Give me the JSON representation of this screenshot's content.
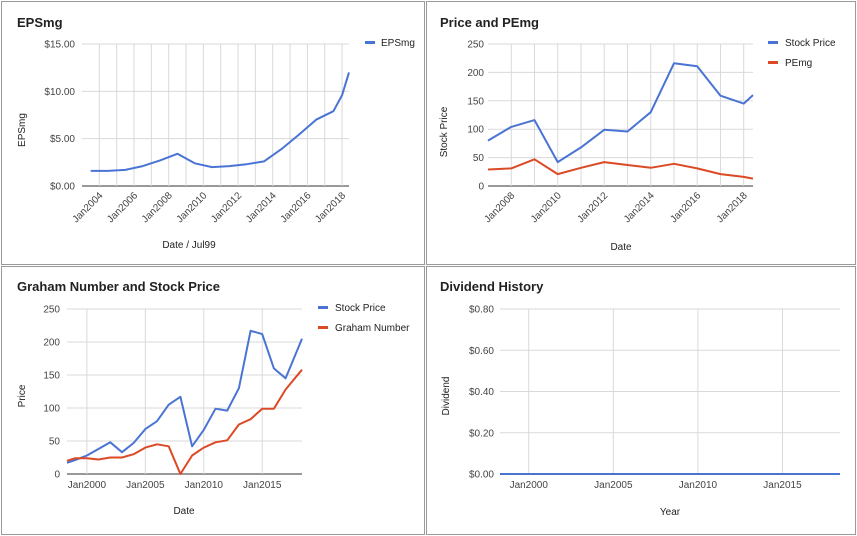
{
  "colors": {
    "blue": "#4a74d4",
    "red": "#dc4a25",
    "grid": "#d9d9d9",
    "axis": "#333333",
    "border": "#9a9a9a"
  },
  "chart_data": [
    {
      "type": "line",
      "title": "EPSmg",
      "xlabel": "Date / Jul99",
      "ylabel": "EPSmg",
      "x_ticks": [
        "Jan2004",
        "Jan2006",
        "Jan2008",
        "Jan2010",
        "Jan2012",
        "Jan2014",
        "Jan2016",
        "Jan2018"
      ],
      "y_ticks": [
        "$0.00",
        "$5.00",
        "$10.00",
        "$15.00"
      ],
      "ylim": [
        0,
        15
      ],
      "x_range": [
        2003,
        2018.4
      ],
      "legend_position": "top-right",
      "grid": true,
      "series": [
        {
          "name": "EPSmg",
          "color": "blue",
          "x": [
            2003.5,
            2004.5,
            2005.5,
            2006.5,
            2007.5,
            2008.5,
            2009.5,
            2010.5,
            2011.5,
            2012.5,
            2013.5,
            2014.5,
            2015.5,
            2016.5,
            2017.5,
            2018.0,
            2018.4
          ],
          "y": [
            1.6,
            1.6,
            1.7,
            2.1,
            2.7,
            3.4,
            2.4,
            2.0,
            2.1,
            2.3,
            2.6,
            3.9,
            5.4,
            7.0,
            7.9,
            9.6,
            12.0
          ]
        }
      ]
    },
    {
      "type": "line",
      "title": "Price and PEmg",
      "xlabel": "Date",
      "ylabel": "Stock Price",
      "x_ticks": [
        "Jan2008",
        "Jan2010",
        "Jan2012",
        "Jan2014",
        "Jan2016",
        "Jan2018"
      ],
      "y_ticks": [
        "0",
        "50",
        "100",
        "150",
        "200",
        "250"
      ],
      "ylim": [
        0,
        250
      ],
      "x_range": [
        2007,
        2018.4
      ],
      "legend_position": "top-right",
      "grid": true,
      "series": [
        {
          "name": "Stock Price",
          "color": "blue",
          "x": [
            2007.0,
            2008.0,
            2009.0,
            2010.0,
            2011.0,
            2012.0,
            2013.0,
            2014.0,
            2015.0,
            2016.0,
            2017.0,
            2018.0,
            2018.4
          ],
          "y": [
            80,
            104,
            116,
            42,
            68,
            99,
            96,
            130,
            216,
            211,
            159,
            145,
            160
          ]
        },
        {
          "name": "PEmg",
          "color": "red",
          "x": [
            2007.0,
            2008.0,
            2009.0,
            2010.0,
            2011.0,
            2012.0,
            2013.0,
            2014.0,
            2015.0,
            2016.0,
            2017.0,
            2018.0,
            2018.4
          ],
          "y": [
            29,
            31,
            47,
            21,
            32,
            42,
            37,
            32,
            39,
            31,
            21,
            16,
            13
          ]
        }
      ]
    },
    {
      "type": "line",
      "title": "Graham Number and Stock Price",
      "xlabel": "Date",
      "ylabel": "Price",
      "x_ticks": [
        "Jan2000",
        "Jan2005",
        "Jan2010",
        "Jan2015"
      ],
      "x_tick_values": [
        2000,
        2005,
        2010,
        2015
      ],
      "y_ticks": [
        "0",
        "50",
        "100",
        "150",
        "200",
        "250"
      ],
      "ylim": [
        0,
        250
      ],
      "x_range": [
        1998.3,
        2018.4
      ],
      "legend_position": "top-right",
      "grid": true,
      "series": [
        {
          "name": "Stock Price",
          "color": "blue",
          "x": [
            1998.3,
            1999,
            2000,
            2001,
            2002,
            2003,
            2004,
            2005,
            2006,
            2007,
            2008,
            2009,
            2010,
            2011,
            2012,
            2013,
            2014,
            2015,
            2016,
            2017,
            2018.4
          ],
          "y": [
            17,
            21,
            28,
            38,
            48,
            33,
            47,
            68,
            80,
            105,
            117,
            42,
            67,
            99,
            96,
            130,
            217,
            212,
            160,
            145,
            205
          ]
        },
        {
          "name": "Graham Number",
          "color": "red",
          "x": [
            1998.3,
            1999,
            2000,
            2001,
            2002,
            2003,
            2004,
            2005,
            2006,
            2007,
            2008,
            2009,
            2010,
            2011,
            2012,
            2013,
            2014,
            2015,
            2016,
            2017,
            2018.4
          ],
          "y": [
            20,
            24,
            24,
            22,
            25,
            25,
            30,
            40,
            45,
            42,
            0,
            28,
            40,
            48,
            51,
            75,
            83,
            99,
            99,
            128,
            158
          ]
        }
      ]
    },
    {
      "type": "line",
      "title": "Dividend History",
      "xlabel": "Year",
      "ylabel": "Dividend",
      "x_ticks": [
        "Jan2000",
        "Jan2005",
        "Jan2010",
        "Jan2015"
      ],
      "x_tick_values": [
        2000,
        2005,
        2010,
        2015
      ],
      "y_ticks": [
        "$0.00",
        "$0.20",
        "$0.40",
        "$0.60",
        "$0.80"
      ],
      "ylim": [
        0,
        0.8
      ],
      "x_range": [
        1998.3,
        2018.4
      ],
      "grid": true,
      "series": [
        {
          "color": "blue",
          "x": [
            1998.3,
            2018.4
          ],
          "y": [
            0,
            0
          ]
        }
      ]
    }
  ]
}
